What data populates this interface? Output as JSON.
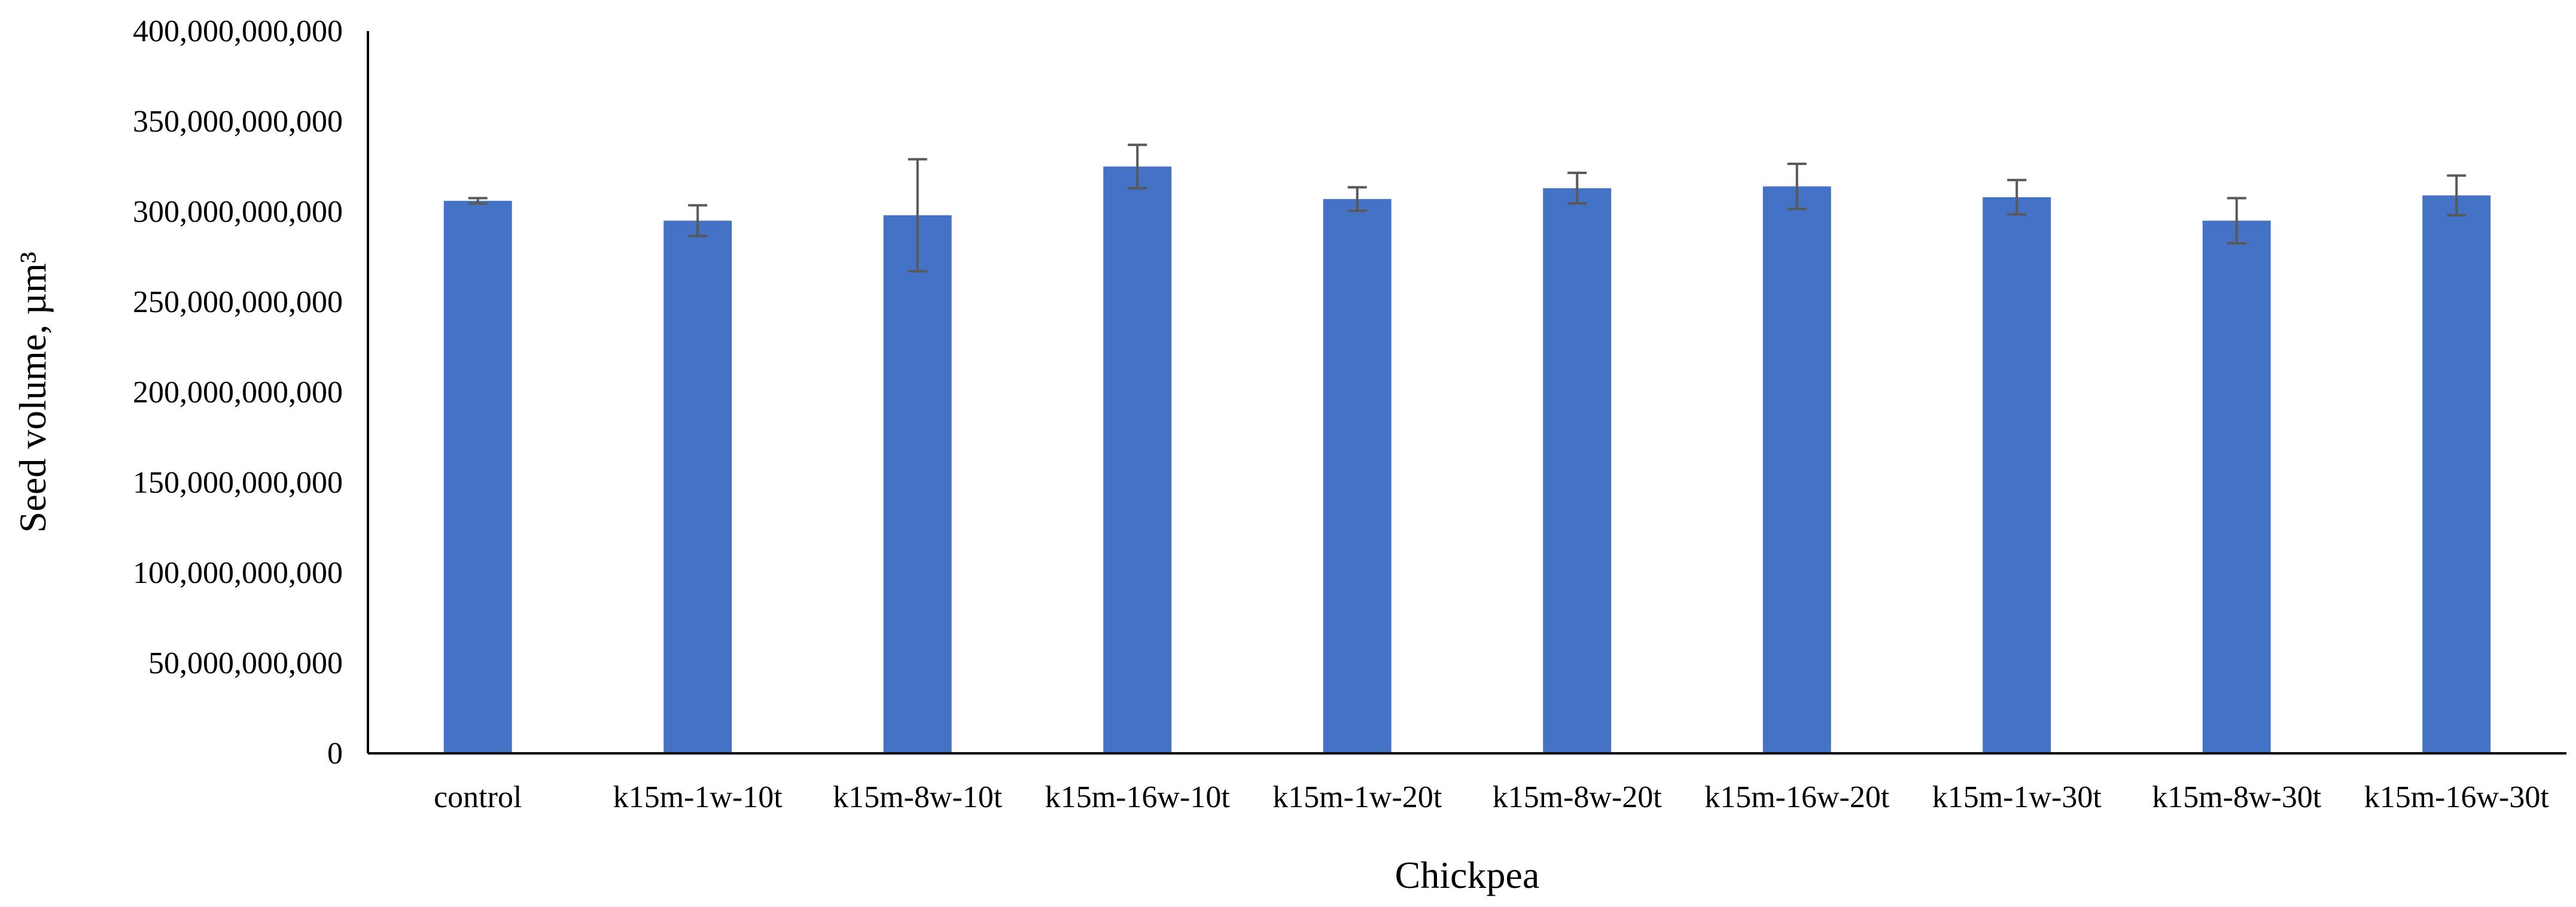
{
  "chart_data": {
    "type": "bar",
    "title": "",
    "xlabel": "Chickpea",
    "ylabel": "Seed volume, µm³",
    "ylim": [
      0,
      400000000000
    ],
    "ytick_step": 50000000000,
    "yticks": [
      "0",
      "50,000,000,000",
      "100,000,000,000",
      "150,000,000,000",
      "200,000,000,000",
      "250,000,000,000",
      "300,000,000,000",
      "350,000,000,000",
      "400,000,000,000"
    ],
    "categories": [
      "control",
      "k15m-1w-10t",
      "k15m-8w-10t",
      "k15m-16w-10t",
      "k15m-1w-20t",
      "k15m-8w-20t",
      "k15m-16w-20t",
      "k15m-1w-30t",
      "k15m-8w-30t",
      "k15m-16w-30t"
    ],
    "values": [
      306000000000,
      295000000000,
      298000000000,
      325000000000,
      307000000000,
      313000000000,
      314000000000,
      308000000000,
      295000000000,
      309000000000
    ],
    "errors": [
      1500000000,
      8500000000,
      31000000000,
      12000000000,
      6500000000,
      8500000000,
      12500000000,
      9500000000,
      12500000000,
      11000000000
    ],
    "bar_color": "#4472C4",
    "error_color": "#595959",
    "grid": false,
    "legend": "none"
  }
}
